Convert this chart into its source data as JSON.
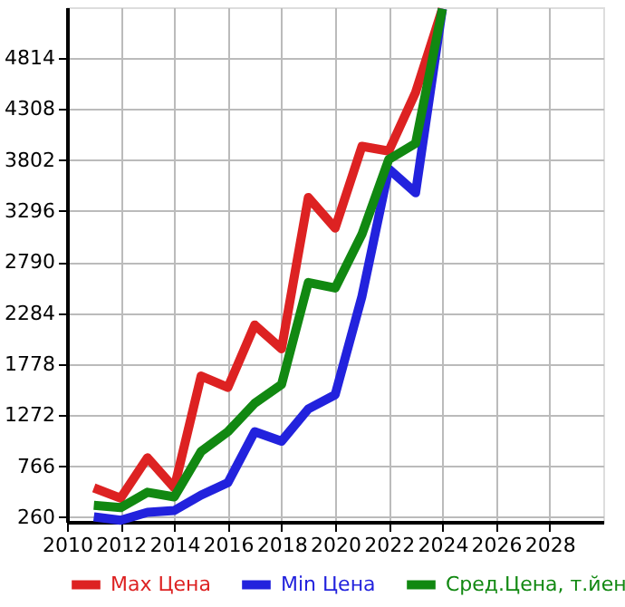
{
  "chart_data": {
    "type": "line",
    "x": [
      2011,
      2012,
      2013,
      2014,
      2015,
      2016,
      2017,
      2018,
      2019,
      2020,
      2021,
      2022,
      2023,
      2024
    ],
    "series": [
      {
        "name": "Max Цена",
        "color": "#dd2222",
        "values": [
          552,
          450,
          850,
          552,
          1660,
          1547,
          2166,
          1930,
          3430,
          3127,
          3937,
          3890,
          4471,
          5300
        ]
      },
      {
        "name": "Min Цена",
        "color": "#2222dd",
        "values": [
          265,
          230,
          310,
          327,
          480,
          603,
          1108,
          1014,
          1334,
          1474,
          2450,
          3712,
          3476,
          5300
        ]
      },
      {
        "name": "Сред.Цена, т.йен",
        "color": "#118811",
        "values": [
          378,
          356,
          508,
          462,
          912,
          1108,
          1390,
          1576,
          2587,
          2532,
          3065,
          3807,
          3966,
          5300
        ]
      }
    ],
    "xlim": [
      2010,
      2030
    ],
    "xticks": [
      2010,
      2012,
      2014,
      2016,
      2018,
      2020,
      2022,
      2024,
      2026,
      2028
    ],
    "ylim": [
      215,
      5315
    ],
    "yticks": [
      260,
      766,
      1272,
      1778,
      2284,
      2790,
      3296,
      3802,
      4308,
      4814
    ],
    "grid": true,
    "legend": "bottom",
    "marker": "none",
    "line_style": "solid"
  }
}
